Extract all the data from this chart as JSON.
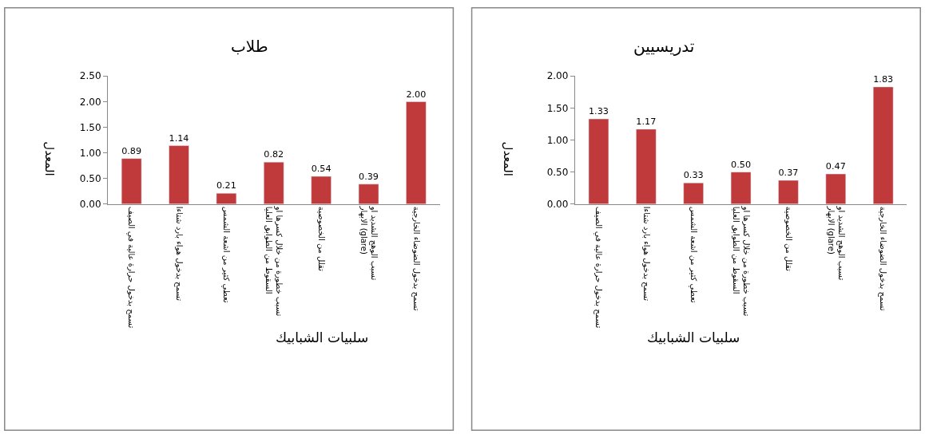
{
  "chart_data": [
    {
      "type": "bar",
      "title": "طلاب",
      "xlabel": "سلبيات الشبابيك",
      "ylabel": "المعدل",
      "categories": [
        "تسمح بدخول حرارة عالية في الصيف",
        "تسمح بدخول هواء بارد شتاءا",
        "تعطي كثير من اشعة الشمس",
        "تسبب خطورة من خلال كسرها او\nالسقوط من الطوابق العليا",
        "تقلل من الخصوصية",
        "تسبب الوهج الشديد او\nالابهار (glare)",
        "تسمح بدخول الضوضاء الخارجية"
      ],
      "values": [
        0.89,
        1.14,
        0.21,
        0.82,
        0.54,
        0.39,
        2.0
      ],
      "value_labels": [
        "0.89",
        "1.14",
        "0.21",
        "0.82",
        "0.54",
        "0.39",
        "2.00"
      ],
      "color": "#c0393b",
      "ylim": [
        0,
        2.5
      ],
      "yticks": [
        {
          "value": 0,
          "label": "0.00"
        },
        {
          "value": 0.5,
          "label": "0.50"
        },
        {
          "value": 1,
          "label": "1.00"
        },
        {
          "value": 1.5,
          "label": "1.50"
        },
        {
          "value": 2,
          "label": "2.00"
        },
        {
          "value": 2.5,
          "label": "2.50"
        }
      ]
    },
    {
      "type": "bar",
      "title": "تدريسيين",
      "xlabel": "سلبيات الشبابيك",
      "ylabel": "المعدل",
      "categories": [
        "تسمح بدخول حرارة عالية في الصيف",
        "تسمح بدخول هواء بارد شتاءا",
        "تعطي كثير من اشعة الشمس",
        "تسبب خطورة من خلال كسرها او\nالسقوط من الطوابق العليا",
        "تقلل من الخصوصية",
        "تسبب الوهج الشديد او\nالابهار (glare)",
        "تسمح بدخول الضوضاء الخارجية"
      ],
      "values": [
        1.33,
        1.17,
        0.33,
        0.5,
        0.37,
        0.47,
        1.83
      ],
      "value_labels": [
        "1.33",
        "1.17",
        "0.33",
        "0.50",
        "0.37",
        "0.47",
        "1.83"
      ],
      "color": "#c0393b",
      "ylim": [
        0,
        2
      ],
      "yticks": [
        {
          "value": 0,
          "label": "0.00"
        },
        {
          "value": 0.5,
          "label": "0.50"
        },
        {
          "value": 1,
          "label": "1.00"
        },
        {
          "value": 1.5,
          "label": "1.50"
        },
        {
          "value": 2,
          "label": "2.00"
        }
      ]
    }
  ]
}
